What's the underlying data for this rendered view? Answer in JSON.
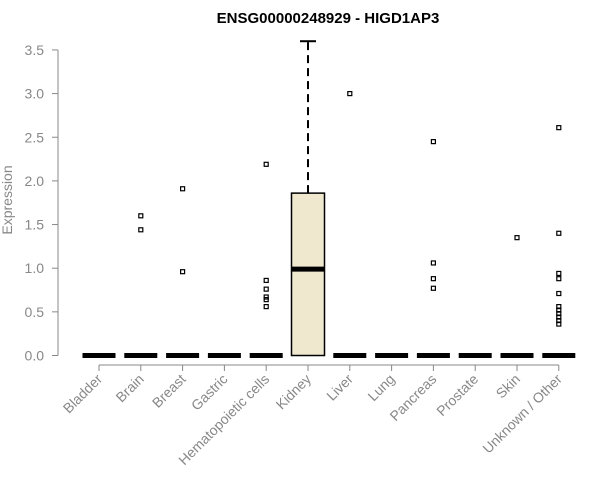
{
  "chart_data": {
    "type": "boxplot",
    "title": "ENSG00000248929 - HIGD1AP3",
    "xlabel": "",
    "ylabel": "Expression",
    "ylim": [
      0,
      3.6
    ],
    "yticks": [
      "0.0",
      "0.5",
      "1.0",
      "1.5",
      "2.0",
      "2.5",
      "3.0",
      "3.5"
    ],
    "grid": false,
    "box_color": "#efe8cf",
    "categories": [
      "Bladder",
      "Brain",
      "Breast",
      "Gastric",
      "Hematopoietic cells",
      "Kidney",
      "Liver",
      "Lung",
      "Pancreas",
      "Prostate",
      "Skin",
      "Unknown / Other"
    ],
    "boxes": [
      {
        "q1": 0,
        "median": 0,
        "q3": 0,
        "whisker_low": 0,
        "whisker_high": 0,
        "outliers": []
      },
      {
        "q1": 0,
        "median": 0,
        "q3": 0,
        "whisker_low": 0,
        "whisker_high": 0,
        "outliers": [
          1.6,
          1.44
        ]
      },
      {
        "q1": 0,
        "median": 0,
        "q3": 0,
        "whisker_low": 0,
        "whisker_high": 0,
        "outliers": [
          1.91,
          0.96
        ]
      },
      {
        "q1": 0,
        "median": 0,
        "q3": 0,
        "whisker_low": 0,
        "whisker_high": 0,
        "outliers": []
      },
      {
        "q1": 0,
        "median": 0,
        "q3": 0,
        "whisker_low": 0,
        "whisker_high": 0,
        "outliers": [
          2.19,
          0.86,
          0.76,
          0.67,
          0.64,
          0.56
        ]
      },
      {
        "q1": 0,
        "median": 0.99,
        "q3": 1.86,
        "whisker_low": 0,
        "whisker_high": 3.6,
        "outliers": []
      },
      {
        "q1": 0,
        "median": 0,
        "q3": 0,
        "whisker_low": 0,
        "whisker_high": 0,
        "outliers": [
          3.0
        ]
      },
      {
        "q1": 0,
        "median": 0,
        "q3": 0,
        "whisker_low": 0,
        "whisker_high": 0,
        "outliers": []
      },
      {
        "q1": 0,
        "median": 0,
        "q3": 0,
        "whisker_low": 0,
        "whisker_high": 0,
        "outliers": [
          2.45,
          1.06,
          0.88,
          0.77
        ]
      },
      {
        "q1": 0,
        "median": 0,
        "q3": 0,
        "whisker_low": 0,
        "whisker_high": 0,
        "outliers": []
      },
      {
        "q1": 0,
        "median": 0,
        "q3": 0,
        "whisker_low": 0,
        "whisker_high": 0,
        "outliers": [
          1.35
        ]
      },
      {
        "q1": 0,
        "median": 0,
        "q3": 0,
        "whisker_low": 0,
        "whisker_high": 0,
        "outliers": [
          2.61,
          1.4,
          0.94,
          0.88,
          0.71,
          0.56,
          0.52,
          0.48,
          0.44,
          0.4,
          0.36
        ]
      }
    ]
  }
}
